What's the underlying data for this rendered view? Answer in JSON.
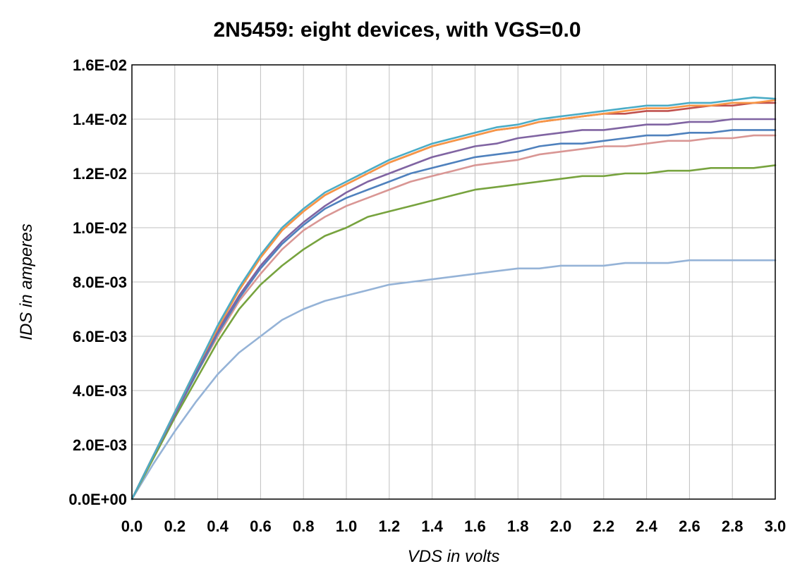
{
  "chart_data": {
    "type": "line",
    "title": "2N5459: eight devices, with VGS=0.0",
    "xlabel": "VDS in volts",
    "ylabel": "IDS  in amperes",
    "xlim": [
      0,
      3.0
    ],
    "ylim": [
      0,
      0.016
    ],
    "x_ticks": [
      0.0,
      0.2,
      0.4,
      0.6,
      0.8,
      1.0,
      1.2,
      1.4,
      1.6,
      1.8,
      2.0,
      2.2,
      2.4,
      2.6,
      2.8,
      3.0
    ],
    "x_tick_labels": [
      "0.0",
      "0.2",
      "0.4",
      "0.6",
      "0.8",
      "1.0",
      "1.2",
      "1.4",
      "1.6",
      "1.8",
      "2.0",
      "2.2",
      "2.4",
      "2.6",
      "2.8",
      "3.0"
    ],
    "y_ticks": [
      0,
      0.002,
      0.004,
      0.006,
      0.008,
      0.01,
      0.012,
      0.014,
      0.016
    ],
    "y_tick_labels": [
      "0.0E+00",
      "2.0E-03",
      "4.0E-03",
      "6.0E-03",
      "8.0E-03",
      "1.0E-02",
      "1.2E-02",
      "1.4E-02",
      "1.6E-02"
    ],
    "grid": true,
    "legend": "none",
    "x": [
      0,
      0.1,
      0.2,
      0.3,
      0.4,
      0.5,
      0.6,
      0.7,
      0.8,
      0.9,
      1.0,
      1.1,
      1.2,
      1.3,
      1.4,
      1.5,
      1.6,
      1.7,
      1.8,
      1.9,
      2.0,
      2.1,
      2.2,
      2.3,
      2.4,
      2.5,
      2.6,
      2.7,
      2.8,
      2.9,
      3.0
    ],
    "series": [
      {
        "color": "#4bacc6",
        "values": [
          0,
          0.0016,
          0.0032,
          0.0048,
          0.0064,
          0.0078,
          0.009,
          0.01,
          0.0107,
          0.0113,
          0.0117,
          0.0121,
          0.0125,
          0.0128,
          0.0131,
          0.0133,
          0.0135,
          0.0137,
          0.0138,
          0.014,
          0.0141,
          0.0142,
          0.0143,
          0.0144,
          0.0145,
          0.0145,
          0.0146,
          0.0146,
          0.0147,
          0.0148,
          0.01475
        ]
      },
      {
        "color": "#f79646",
        "values": [
          0,
          0.0016,
          0.0032,
          0.0048,
          0.0063,
          0.0077,
          0.0089,
          0.0099,
          0.0106,
          0.0112,
          0.0116,
          0.012,
          0.0124,
          0.0127,
          0.013,
          0.0132,
          0.0134,
          0.0136,
          0.0137,
          0.0139,
          0.014,
          0.0141,
          0.0142,
          0.0143,
          0.0144,
          0.0144,
          0.0145,
          0.0145,
          0.0146,
          0.0146,
          0.0147
        ]
      },
      {
        "color": "#c0504d",
        "values": [
          0,
          0.0016,
          0.0032,
          0.0048,
          0.0063,
          0.0077,
          0.0089,
          0.0099,
          0.0106,
          0.0112,
          0.0116,
          0.012,
          0.0124,
          0.0127,
          0.013,
          0.0132,
          0.0134,
          0.0136,
          0.0137,
          0.0139,
          0.014,
          0.0141,
          0.0142,
          0.0142,
          0.0143,
          0.0143,
          0.0144,
          0.0145,
          0.0145,
          0.0146,
          0.0146
        ]
      },
      {
        "color": "#8064a2",
        "values": [
          0,
          0.0016,
          0.0031,
          0.0047,
          0.0062,
          0.0075,
          0.0086,
          0.0095,
          0.0102,
          0.0108,
          0.0113,
          0.0117,
          0.012,
          0.0123,
          0.0126,
          0.0128,
          0.013,
          0.0131,
          0.0133,
          0.0134,
          0.0135,
          0.0136,
          0.0136,
          0.0137,
          0.0138,
          0.0138,
          0.0139,
          0.0139,
          0.014,
          0.014,
          0.014
        ]
      },
      {
        "color": "#4f81bd",
        "values": [
          0,
          0.0016,
          0.0031,
          0.0046,
          0.0061,
          0.0074,
          0.0085,
          0.0094,
          0.0101,
          0.0107,
          0.0111,
          0.0114,
          0.0117,
          0.012,
          0.0122,
          0.0124,
          0.0126,
          0.0127,
          0.0128,
          0.013,
          0.0131,
          0.0131,
          0.0132,
          0.0133,
          0.0134,
          0.0134,
          0.0135,
          0.0135,
          0.0136,
          0.0136,
          0.0136
        ]
      },
      {
        "color": "#d99694",
        "values": [
          0,
          0.0016,
          0.0031,
          0.0046,
          0.006,
          0.0073,
          0.0083,
          0.0092,
          0.0099,
          0.0104,
          0.0108,
          0.0111,
          0.0114,
          0.0117,
          0.0119,
          0.0121,
          0.0123,
          0.0124,
          0.0125,
          0.0127,
          0.0128,
          0.0129,
          0.013,
          0.013,
          0.0131,
          0.0132,
          0.0132,
          0.0133,
          0.0133,
          0.0134,
          0.0134
        ]
      },
      {
        "color": "#77a33e",
        "values": [
          0,
          0.0015,
          0.003,
          0.0044,
          0.0058,
          0.007,
          0.0079,
          0.0086,
          0.0092,
          0.0097,
          0.01,
          0.0104,
          0.0106,
          0.0108,
          0.011,
          0.0112,
          0.0114,
          0.0115,
          0.0116,
          0.0117,
          0.0118,
          0.0119,
          0.0119,
          0.012,
          0.012,
          0.0121,
          0.0121,
          0.0122,
          0.0122,
          0.0122,
          0.0123
        ]
      },
      {
        "color": "#95b3d7",
        "values": [
          0,
          0.0013,
          0.0025,
          0.0036,
          0.0046,
          0.0054,
          0.006,
          0.0066,
          0.007,
          0.0073,
          0.0075,
          0.0077,
          0.0079,
          0.008,
          0.0081,
          0.0082,
          0.0083,
          0.0084,
          0.0085,
          0.0085,
          0.0086,
          0.0086,
          0.0086,
          0.0087,
          0.0087,
          0.0087,
          0.0088,
          0.0088,
          0.0088,
          0.0088,
          0.0088
        ]
      }
    ]
  }
}
